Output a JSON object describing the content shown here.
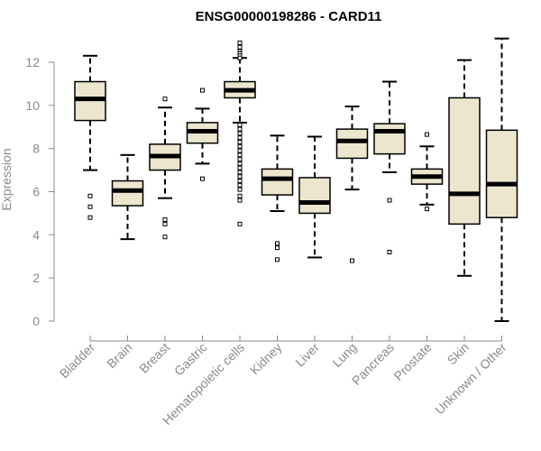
{
  "chart_data": {
    "type": "boxplot",
    "title": "ENSG00000198286 - CARD11",
    "xlabel": "",
    "ylabel": "Expression",
    "ylim": [
      0,
      13.2
    ],
    "yticks": [
      0,
      2,
      4,
      6,
      8,
      10,
      12
    ],
    "box_fill": "#ede6cf",
    "categories": [
      "Bladder",
      "Brain",
      "Breast",
      "Gastric",
      "Hematopoietic cells",
      "Kidney",
      "Liver",
      "Lung",
      "Pancreas",
      "Prostate",
      "Skin",
      "Unknown / Other"
    ],
    "boxes": [
      {
        "whisker_low": 7.0,
        "q1": 9.3,
        "median": 10.3,
        "q3": 11.1,
        "whisker_high": 12.3,
        "outliers": [
          5.8,
          5.3,
          4.8
        ]
      },
      {
        "whisker_low": 3.8,
        "q1": 5.35,
        "median": 6.05,
        "q3": 6.5,
        "whisker_high": 7.7,
        "outliers": []
      },
      {
        "whisker_low": 5.7,
        "q1": 7.0,
        "median": 7.65,
        "q3": 8.2,
        "whisker_high": 9.9,
        "outliers": [
          10.3,
          4.7,
          4.5,
          3.9
        ]
      },
      {
        "whisker_low": 7.3,
        "q1": 8.25,
        "median": 8.8,
        "q3": 9.2,
        "whisker_high": 9.85,
        "outliers": [
          10.7,
          6.6
        ]
      },
      {
        "whisker_low": 9.2,
        "q1": 10.35,
        "median": 10.7,
        "q3": 11.1,
        "whisker_high": 12.2,
        "outliers": [
          12.9,
          12.7,
          12.5,
          12.4,
          12.3,
          12.2,
          9.1,
          8.9,
          8.7,
          8.5,
          8.3,
          8.1,
          7.9,
          7.7,
          7.5,
          7.3,
          7.1,
          6.9,
          6.7,
          6.5,
          6.3,
          6.1,
          5.8,
          5.6,
          4.5
        ]
      },
      {
        "whisker_low": 5.1,
        "q1": 5.85,
        "median": 6.6,
        "q3": 7.05,
        "whisker_high": 8.6,
        "outliers": [
          3.6,
          3.4,
          2.85
        ]
      },
      {
        "whisker_low": 2.95,
        "q1": 5.0,
        "median": 5.5,
        "q3": 6.65,
        "whisker_high": 8.55,
        "outliers": []
      },
      {
        "whisker_low": 6.1,
        "q1": 7.55,
        "median": 8.35,
        "q3": 8.9,
        "whisker_high": 9.95,
        "outliers": [
          2.8
        ]
      },
      {
        "whisker_low": 6.9,
        "q1": 7.75,
        "median": 8.8,
        "q3": 9.15,
        "whisker_high": 11.1,
        "outliers": [
          5.6,
          3.2
        ]
      },
      {
        "whisker_low": 5.4,
        "q1": 6.35,
        "median": 6.7,
        "q3": 7.05,
        "whisker_high": 8.1,
        "outliers": [
          8.65,
          5.2
        ]
      },
      {
        "whisker_low": 2.1,
        "q1": 4.5,
        "median": 5.9,
        "q3": 10.35,
        "whisker_high": 12.1,
        "outliers": []
      },
      {
        "whisker_low": 0.0,
        "q1": 4.8,
        "median": 6.35,
        "q3": 8.85,
        "whisker_high": 13.1,
        "outliers": []
      }
    ]
  }
}
